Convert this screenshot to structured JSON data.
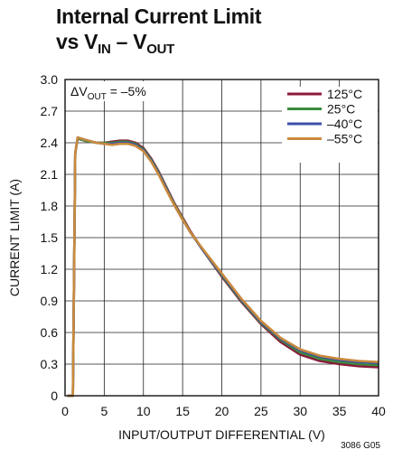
{
  "title": {
    "line1": "Internal Current Limit",
    "line2_prefix": "vs V",
    "line2_sub1": "IN",
    "line2_mid": " – V",
    "line2_sub2": "OUT"
  },
  "figure_id": "3086 G05",
  "chart_data": {
    "type": "line",
    "title": "Internal Current Limit vs VIN – VOUT",
    "xlabel": "INPUT/OUTPUT DIFFERENTIAL (V)",
    "ylabel": "CURRENT LIMIT (A)",
    "xlim": [
      0,
      40
    ],
    "ylim": [
      0,
      3.0
    ],
    "xticks": [
      0,
      5,
      10,
      15,
      20,
      25,
      30,
      35,
      40
    ],
    "yticks": [
      0,
      0.3,
      0.6,
      0.9,
      1.2,
      1.5,
      1.8,
      2.1,
      2.4,
      2.7,
      3.0
    ],
    "ytick_labels": [
      "0",
      "0.3",
      "0.6",
      "0.9",
      "1.2",
      "1.5",
      "1.8",
      "2.1",
      "2.4",
      "2.7",
      "3.0"
    ],
    "grid": true,
    "legend_position": "top-right",
    "annotation": {
      "prefix": "ΔV",
      "sub": "OUT",
      "suffix": " = –5%"
    },
    "series": [
      {
        "name": "125°C",
        "color": "#8b1a3a",
        "x": [
          0.3,
          1.0,
          1.3,
          1.6,
          2.5,
          4.0,
          5.0,
          6.0,
          7.0,
          8.0,
          9.0,
          10.0,
          11.0,
          12.0,
          13.0,
          14.0,
          15.0,
          16.0,
          17.5,
          20.0,
          22.5,
          25.0,
          27.5,
          30.0,
          32.5,
          35.0,
          37.5,
          40.0
        ],
        "y": [
          0.0,
          0.0,
          2.3,
          2.44,
          2.42,
          2.4,
          2.4,
          2.41,
          2.42,
          2.42,
          2.4,
          2.35,
          2.25,
          2.12,
          1.97,
          1.82,
          1.69,
          1.56,
          1.39,
          1.13,
          0.89,
          0.68,
          0.51,
          0.39,
          0.33,
          0.3,
          0.28,
          0.27
        ]
      },
      {
        "name": "25°C",
        "color": "#3a8a3e",
        "x": [
          0.3,
          1.0,
          1.3,
          1.6,
          2.5,
          4.0,
          5.0,
          6.0,
          7.0,
          8.0,
          9.0,
          10.0,
          11.0,
          12.0,
          13.0,
          14.0,
          15.0,
          16.0,
          17.5,
          20.0,
          22.5,
          25.0,
          27.5,
          30.0,
          32.5,
          35.0,
          37.5,
          40.0
        ],
        "y": [
          0.0,
          0.0,
          2.3,
          2.44,
          2.42,
          2.4,
          2.4,
          2.4,
          2.41,
          2.41,
          2.39,
          2.34,
          2.24,
          2.11,
          1.96,
          1.81,
          1.68,
          1.55,
          1.39,
          1.14,
          0.9,
          0.69,
          0.53,
          0.41,
          0.35,
          0.32,
          0.3,
          0.29
        ]
      },
      {
        "name": "–40°C",
        "color": "#3c4fa8",
        "x": [
          0.3,
          1.0,
          1.3,
          1.6,
          2.5,
          4.0,
          5.0,
          6.0,
          7.0,
          8.0,
          9.0,
          10.0,
          11.0,
          12.0,
          13.0,
          14.0,
          15.0,
          16.0,
          17.5,
          20.0,
          22.5,
          25.0,
          27.5,
          30.0,
          32.5,
          35.0,
          37.5,
          40.0
        ],
        "y": [
          0.0,
          0.0,
          2.3,
          2.45,
          2.43,
          2.4,
          2.39,
          2.39,
          2.4,
          2.4,
          2.38,
          2.33,
          2.23,
          2.1,
          1.95,
          1.8,
          1.67,
          1.55,
          1.39,
          1.15,
          0.91,
          0.7,
          0.54,
          0.43,
          0.37,
          0.34,
          0.32,
          0.31
        ]
      },
      {
        "name": "–55°C",
        "color": "#c98a3c",
        "x": [
          0.3,
          1.0,
          1.3,
          1.6,
          2.5,
          4.0,
          5.0,
          6.0,
          7.0,
          8.0,
          9.0,
          10.0,
          11.0,
          12.0,
          13.0,
          14.0,
          15.0,
          16.0,
          17.5,
          20.0,
          22.5,
          25.0,
          27.5,
          30.0,
          32.5,
          35.0,
          37.5,
          40.0
        ],
        "y": [
          0.0,
          0.0,
          2.3,
          2.45,
          2.43,
          2.4,
          2.39,
          2.38,
          2.39,
          2.39,
          2.37,
          2.32,
          2.22,
          2.09,
          1.94,
          1.8,
          1.67,
          1.55,
          1.4,
          1.16,
          0.92,
          0.71,
          0.55,
          0.44,
          0.38,
          0.35,
          0.33,
          0.32
        ]
      }
    ]
  }
}
